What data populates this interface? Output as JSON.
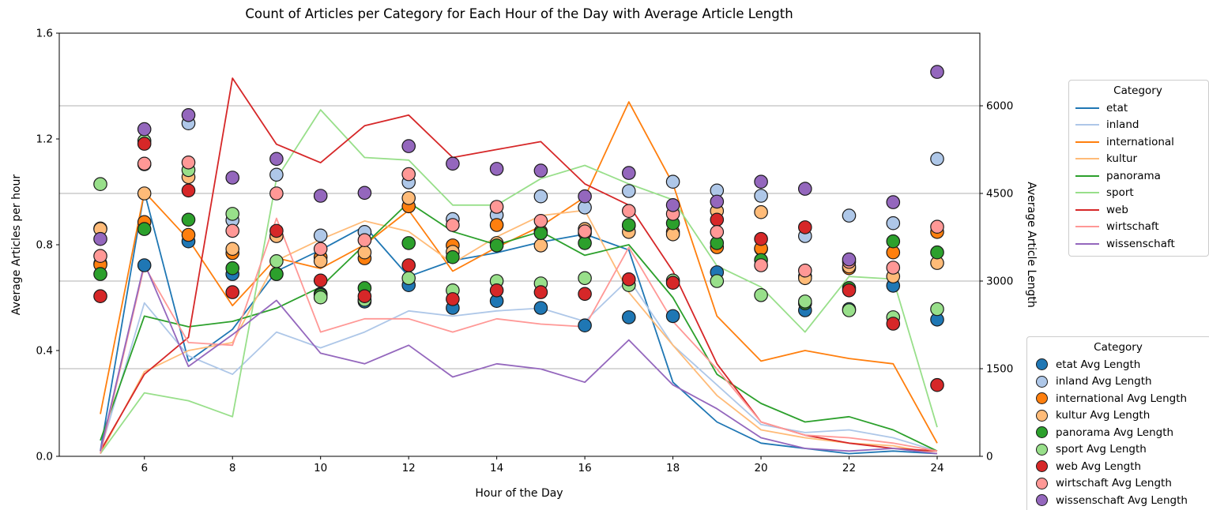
{
  "title": "Count of Articles per Category for Each Hour of the Day with Average Article Length",
  "axes": {
    "x": {
      "label": "Hour of the Day",
      "ticks": [
        6,
        8,
        10,
        12,
        14,
        16,
        18,
        20,
        22,
        24
      ],
      "range": [
        4.05,
        25.0
      ]
    },
    "y_left": {
      "label": "Average Articles per hour",
      "ticks": [
        "0.0",
        "0.4",
        "0.8",
        "1.2",
        "1.6"
      ],
      "range": [
        0.0,
        1.6
      ]
    },
    "y_right": {
      "label": "Average Article Length",
      "ticks": [
        0,
        1500,
        3000,
        4500,
        6000
      ],
      "range": [
        0,
        7240
      ]
    }
  },
  "chart_data": {
    "type": "line+scatter",
    "x": [
      5,
      6,
      7,
      8,
      9,
      10,
      11,
      12,
      13,
      14,
      15,
      16,
      17,
      18,
      19,
      20,
      21,
      22,
      23,
      24
    ],
    "grid": "horizontal-right-axis",
    "legend_lines": {
      "title": "Category",
      "entries": [
        "etat",
        "inland",
        "international",
        "kultur",
        "panorama",
        "sport",
        "web",
        "wirtschaft",
        "wissenschaft"
      ]
    },
    "legend_scatter": {
      "title": "Category",
      "entries": [
        "etat Avg Length",
        "inland Avg Length",
        "international Avg Length",
        "kultur Avg Length",
        "panorama Avg Length",
        "sport Avg Length",
        "web Avg Length",
        "wirtschaft Avg Length",
        "wissenschaft Avg Length"
      ]
    },
    "series": [
      {
        "name": "etat",
        "color": "#1f77b4",
        "line": [
          0.02,
          1.0,
          0.36,
          0.48,
          0.7,
          0.78,
          0.87,
          0.68,
          0.74,
          0.77,
          0.81,
          0.84,
          0.78,
          0.28,
          0.13,
          0.05,
          0.03,
          0.01,
          0.02,
          0.01
        ],
        "scatter": [
          3300,
          3270,
          3680,
          3120,
          3120,
          2780,
          2650,
          2930,
          2540,
          2660,
          2540,
          2240,
          2380,
          2400,
          3150,
          3550,
          2500,
          2520,
          2920,
          2340
        ]
      },
      {
        "name": "inland",
        "color": "#aec7e8",
        "line": [
          0.02,
          0.58,
          0.38,
          0.31,
          0.47,
          0.41,
          0.47,
          0.55,
          0.53,
          0.55,
          0.56,
          0.51,
          0.67,
          0.42,
          0.27,
          0.12,
          0.09,
          0.1,
          0.07,
          0.02
        ],
        "scatter": [
          3900,
          5000,
          5700,
          4040,
          4820,
          3780,
          3840,
          4690,
          4060,
          4130,
          4450,
          4260,
          4540,
          4700,
          4550,
          4460,
          3770,
          4120,
          3990,
          5090
        ]
      },
      {
        "name": "international",
        "color": "#ff7f0e",
        "line": [
          0.16,
          1.0,
          0.82,
          0.57,
          0.75,
          0.71,
          0.8,
          0.93,
          0.7,
          0.79,
          0.87,
          0.98,
          1.34,
          1.03,
          0.53,
          0.36,
          0.4,
          0.37,
          0.35,
          0.05
        ],
        "scatter": [
          3280,
          4010,
          3790,
          3480,
          3770,
          3410,
          3390,
          4280,
          3610,
          3960,
          3850,
          3820,
          3950,
          3840,
          3580,
          3560,
          3080,
          3220,
          3490,
          3840
        ]
      },
      {
        "name": "kultur",
        "color": "#ffbb78",
        "line": [
          0.01,
          0.32,
          0.4,
          0.43,
          0.74,
          0.82,
          0.89,
          0.85,
          0.73,
          0.83,
          0.91,
          0.93,
          0.62,
          0.42,
          0.23,
          0.1,
          0.07,
          0.05,
          0.04,
          0.01
        ],
        "scatter": [
          3890,
          4500,
          4780,
          3550,
          3770,
          3340,
          3490,
          4420,
          3500,
          3650,
          3610,
          3890,
          3840,
          3800,
          4200,
          4180,
          3050,
          3250,
          3080,
          3310
        ]
      },
      {
        "name": "panorama",
        "color": "#2ca02c",
        "line": [
          0.06,
          0.53,
          0.49,
          0.51,
          0.56,
          0.64,
          0.8,
          0.96,
          0.85,
          0.8,
          0.85,
          0.76,
          0.8,
          0.6,
          0.31,
          0.2,
          0.13,
          0.15,
          0.1,
          0.02
        ],
        "scatter": [
          3120,
          3890,
          4050,
          3220,
          3120,
          2760,
          2880,
          3650,
          3410,
          3610,
          3820,
          3650,
          3960,
          3990,
          3650,
          3360,
          2620,
          2880,
          3680,
          3490
        ]
      },
      {
        "name": "sport",
        "color": "#98df8a",
        "line": [
          0.01,
          0.24,
          0.21,
          0.15,
          1.05,
          1.31,
          1.13,
          1.12,
          0.95,
          0.95,
          1.05,
          1.1,
          1.03,
          0.97,
          0.72,
          0.64,
          0.47,
          0.68,
          0.67,
          0.11
        ],
        "scatter": [
          4660,
          5400,
          4900,
          4150,
          3340,
          2720,
          2680,
          3050,
          2840,
          3000,
          2960,
          3050,
          2930,
          3010,
          3000,
          2760,
          2650,
          2500,
          2380,
          2520
        ]
      },
      {
        "name": "web",
        "color": "#d62728",
        "line": [
          0.02,
          0.31,
          0.45,
          1.43,
          1.18,
          1.11,
          1.25,
          1.29,
          1.13,
          1.16,
          1.19,
          1.03,
          0.95,
          0.7,
          0.35,
          0.13,
          0.08,
          0.05,
          0.03,
          0.02
        ],
        "scatter": [
          2740,
          5350,
          4550,
          2810,
          3860,
          3010,
          2740,
          3270,
          2690,
          2840,
          2810,
          2780,
          3030,
          2970,
          4050,
          3720,
          3920,
          2840,
          2270,
          1220
        ]
      },
      {
        "name": "wirtschaft",
        "color": "#ff9896",
        "line": [
          0.01,
          0.72,
          0.43,
          0.42,
          0.9,
          0.47,
          0.52,
          0.52,
          0.47,
          0.52,
          0.5,
          0.49,
          0.79,
          0.51,
          0.33,
          0.13,
          0.08,
          0.07,
          0.05,
          0.02
        ],
        "scatter": [
          3430,
          5010,
          5030,
          3860,
          4500,
          3550,
          3700,
          4830,
          3960,
          4270,
          4030,
          3850,
          4200,
          4150,
          3840,
          3270,
          3180,
          3330,
          3230,
          3930
        ]
      },
      {
        "name": "wissenschaft",
        "color": "#9467bd",
        "line": [
          0.02,
          0.73,
          0.34,
          0.46,
          0.59,
          0.39,
          0.35,
          0.42,
          0.3,
          0.35,
          0.33,
          0.28,
          0.44,
          0.27,
          0.18,
          0.07,
          0.03,
          0.02,
          0.03,
          0.01
        ],
        "scatter": [
          3720,
          5600,
          5840,
          4770,
          5090,
          4460,
          4510,
          5310,
          5010,
          4920,
          4890,
          4450,
          4850,
          4300,
          4360,
          4700,
          4580,
          3370,
          4350,
          6580
        ]
      }
    ]
  }
}
